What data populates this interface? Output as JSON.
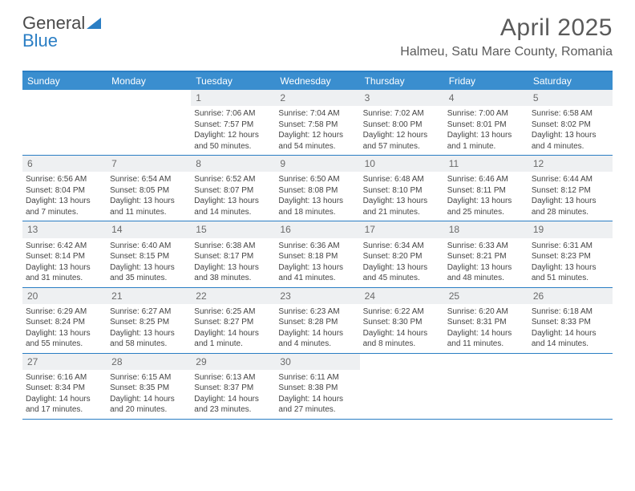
{
  "logo": {
    "word1": "General",
    "word2": "Blue"
  },
  "title": "April 2025",
  "location": "Halmeu, Satu Mare County, Romania",
  "colors": {
    "accent": "#3a8ecf",
    "border": "#2a7ec4",
    "daynum_bg": "#eef0f2",
    "text": "#444444",
    "heading": "#5a5a5a",
    "background": "#ffffff"
  },
  "typography": {
    "title_fontsize": 30,
    "location_fontsize": 16,
    "weekday_fontsize": 12,
    "daynum_fontsize": 12,
    "body_fontsize": 10
  },
  "weekdays": [
    "Sunday",
    "Monday",
    "Tuesday",
    "Wednesday",
    "Thursday",
    "Friday",
    "Saturday"
  ],
  "weeks": [
    [
      {
        "day": null
      },
      {
        "day": null
      },
      {
        "day": "1",
        "sunrise": "Sunrise: 7:06 AM",
        "sunset": "Sunset: 7:57 PM",
        "daylight1": "Daylight: 12 hours",
        "daylight2": "and 50 minutes."
      },
      {
        "day": "2",
        "sunrise": "Sunrise: 7:04 AM",
        "sunset": "Sunset: 7:58 PM",
        "daylight1": "Daylight: 12 hours",
        "daylight2": "and 54 minutes."
      },
      {
        "day": "3",
        "sunrise": "Sunrise: 7:02 AM",
        "sunset": "Sunset: 8:00 PM",
        "daylight1": "Daylight: 12 hours",
        "daylight2": "and 57 minutes."
      },
      {
        "day": "4",
        "sunrise": "Sunrise: 7:00 AM",
        "sunset": "Sunset: 8:01 PM",
        "daylight1": "Daylight: 13 hours",
        "daylight2": "and 1 minute."
      },
      {
        "day": "5",
        "sunrise": "Sunrise: 6:58 AM",
        "sunset": "Sunset: 8:02 PM",
        "daylight1": "Daylight: 13 hours",
        "daylight2": "and 4 minutes."
      }
    ],
    [
      {
        "day": "6",
        "sunrise": "Sunrise: 6:56 AM",
        "sunset": "Sunset: 8:04 PM",
        "daylight1": "Daylight: 13 hours",
        "daylight2": "and 7 minutes."
      },
      {
        "day": "7",
        "sunrise": "Sunrise: 6:54 AM",
        "sunset": "Sunset: 8:05 PM",
        "daylight1": "Daylight: 13 hours",
        "daylight2": "and 11 minutes."
      },
      {
        "day": "8",
        "sunrise": "Sunrise: 6:52 AM",
        "sunset": "Sunset: 8:07 PM",
        "daylight1": "Daylight: 13 hours",
        "daylight2": "and 14 minutes."
      },
      {
        "day": "9",
        "sunrise": "Sunrise: 6:50 AM",
        "sunset": "Sunset: 8:08 PM",
        "daylight1": "Daylight: 13 hours",
        "daylight2": "and 18 minutes."
      },
      {
        "day": "10",
        "sunrise": "Sunrise: 6:48 AM",
        "sunset": "Sunset: 8:10 PM",
        "daylight1": "Daylight: 13 hours",
        "daylight2": "and 21 minutes."
      },
      {
        "day": "11",
        "sunrise": "Sunrise: 6:46 AM",
        "sunset": "Sunset: 8:11 PM",
        "daylight1": "Daylight: 13 hours",
        "daylight2": "and 25 minutes."
      },
      {
        "day": "12",
        "sunrise": "Sunrise: 6:44 AM",
        "sunset": "Sunset: 8:12 PM",
        "daylight1": "Daylight: 13 hours",
        "daylight2": "and 28 minutes."
      }
    ],
    [
      {
        "day": "13",
        "sunrise": "Sunrise: 6:42 AM",
        "sunset": "Sunset: 8:14 PM",
        "daylight1": "Daylight: 13 hours",
        "daylight2": "and 31 minutes."
      },
      {
        "day": "14",
        "sunrise": "Sunrise: 6:40 AM",
        "sunset": "Sunset: 8:15 PM",
        "daylight1": "Daylight: 13 hours",
        "daylight2": "and 35 minutes."
      },
      {
        "day": "15",
        "sunrise": "Sunrise: 6:38 AM",
        "sunset": "Sunset: 8:17 PM",
        "daylight1": "Daylight: 13 hours",
        "daylight2": "and 38 minutes."
      },
      {
        "day": "16",
        "sunrise": "Sunrise: 6:36 AM",
        "sunset": "Sunset: 8:18 PM",
        "daylight1": "Daylight: 13 hours",
        "daylight2": "and 41 minutes."
      },
      {
        "day": "17",
        "sunrise": "Sunrise: 6:34 AM",
        "sunset": "Sunset: 8:20 PM",
        "daylight1": "Daylight: 13 hours",
        "daylight2": "and 45 minutes."
      },
      {
        "day": "18",
        "sunrise": "Sunrise: 6:33 AM",
        "sunset": "Sunset: 8:21 PM",
        "daylight1": "Daylight: 13 hours",
        "daylight2": "and 48 minutes."
      },
      {
        "day": "19",
        "sunrise": "Sunrise: 6:31 AM",
        "sunset": "Sunset: 8:23 PM",
        "daylight1": "Daylight: 13 hours",
        "daylight2": "and 51 minutes."
      }
    ],
    [
      {
        "day": "20",
        "sunrise": "Sunrise: 6:29 AM",
        "sunset": "Sunset: 8:24 PM",
        "daylight1": "Daylight: 13 hours",
        "daylight2": "and 55 minutes."
      },
      {
        "day": "21",
        "sunrise": "Sunrise: 6:27 AM",
        "sunset": "Sunset: 8:25 PM",
        "daylight1": "Daylight: 13 hours",
        "daylight2": "and 58 minutes."
      },
      {
        "day": "22",
        "sunrise": "Sunrise: 6:25 AM",
        "sunset": "Sunset: 8:27 PM",
        "daylight1": "Daylight: 14 hours",
        "daylight2": "and 1 minute."
      },
      {
        "day": "23",
        "sunrise": "Sunrise: 6:23 AM",
        "sunset": "Sunset: 8:28 PM",
        "daylight1": "Daylight: 14 hours",
        "daylight2": "and 4 minutes."
      },
      {
        "day": "24",
        "sunrise": "Sunrise: 6:22 AM",
        "sunset": "Sunset: 8:30 PM",
        "daylight1": "Daylight: 14 hours",
        "daylight2": "and 8 minutes."
      },
      {
        "day": "25",
        "sunrise": "Sunrise: 6:20 AM",
        "sunset": "Sunset: 8:31 PM",
        "daylight1": "Daylight: 14 hours",
        "daylight2": "and 11 minutes."
      },
      {
        "day": "26",
        "sunrise": "Sunrise: 6:18 AM",
        "sunset": "Sunset: 8:33 PM",
        "daylight1": "Daylight: 14 hours",
        "daylight2": "and 14 minutes."
      }
    ],
    [
      {
        "day": "27",
        "sunrise": "Sunrise: 6:16 AM",
        "sunset": "Sunset: 8:34 PM",
        "daylight1": "Daylight: 14 hours",
        "daylight2": "and 17 minutes."
      },
      {
        "day": "28",
        "sunrise": "Sunrise: 6:15 AM",
        "sunset": "Sunset: 8:35 PM",
        "daylight1": "Daylight: 14 hours",
        "daylight2": "and 20 minutes."
      },
      {
        "day": "29",
        "sunrise": "Sunrise: 6:13 AM",
        "sunset": "Sunset: 8:37 PM",
        "daylight1": "Daylight: 14 hours",
        "daylight2": "and 23 minutes."
      },
      {
        "day": "30",
        "sunrise": "Sunrise: 6:11 AM",
        "sunset": "Sunset: 8:38 PM",
        "daylight1": "Daylight: 14 hours",
        "daylight2": "and 27 minutes."
      },
      {
        "day": null
      },
      {
        "day": null
      },
      {
        "day": null
      }
    ]
  ]
}
